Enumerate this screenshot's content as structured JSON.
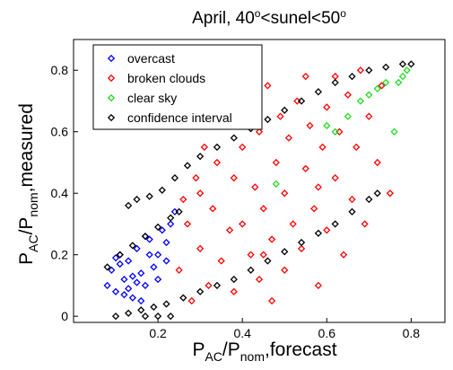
{
  "chart_data": {
    "type": "scatter",
    "title": [
      "April, 40",
      "o",
      "<sunel<50",
      "o"
    ],
    "x_label": [
      "P",
      "AC",
      "/P",
      "nom",
      ",forecast"
    ],
    "y_label": [
      "P",
      "AC",
      "/P",
      "nom",
      ",measured"
    ],
    "xlim": [
      0,
      0.88
    ],
    "ylim": [
      -0.02,
      0.9
    ],
    "xticks": [
      0.2,
      0.4,
      0.6,
      0.8
    ],
    "yticks": [
      0,
      0.2,
      0.4,
      0.6,
      0.8
    ],
    "legend": "upper left",
    "series": [
      {
        "name": "overcast",
        "color": "#0000ff",
        "x": [
          0.08,
          0.09,
          0.1,
          0.11,
          0.12,
          0.13,
          0.14,
          0.15,
          0.16,
          0.17,
          0.18,
          0.19,
          0.2,
          0.21,
          0.22,
          0.23,
          0.24,
          0.1,
          0.12,
          0.14,
          0.16,
          0.18,
          0.2,
          0.22,
          0.11,
          0.13,
          0.15,
          0.17
        ],
        "values": [
          0.1,
          0.15,
          0.08,
          0.2,
          0.12,
          0.18,
          0.06,
          0.22,
          0.14,
          0.1,
          0.25,
          0.16,
          0.2,
          0.28,
          0.18,
          0.3,
          0.34,
          0.19,
          0.07,
          0.13,
          0.05,
          0.2,
          0.12,
          0.24,
          0.17,
          0.09,
          0.11,
          0.26
        ]
      },
      {
        "name": "broken clouds",
        "color": "#ff0000",
        "x": [
          0.25,
          0.27,
          0.28,
          0.3,
          0.3,
          0.32,
          0.33,
          0.34,
          0.35,
          0.36,
          0.37,
          0.38,
          0.38,
          0.4,
          0.4,
          0.41,
          0.42,
          0.43,
          0.44,
          0.44,
          0.45,
          0.46,
          0.47,
          0.48,
          0.49,
          0.5,
          0.5,
          0.51,
          0.52,
          0.53,
          0.54,
          0.55,
          0.56,
          0.57,
          0.58,
          0.59,
          0.6,
          0.6,
          0.62,
          0.63,
          0.64,
          0.65,
          0.66,
          0.67,
          0.68,
          0.69,
          0.7,
          0.72,
          0.73,
          0.75,
          0.35,
          0.31,
          0.29,
          0.42,
          0.47,
          0.55,
          0.62,
          0.26,
          0.45,
          0.58
        ],
        "values": [
          0.15,
          0.3,
          0.05,
          0.4,
          0.22,
          0.1,
          0.35,
          0.5,
          0.18,
          0.62,
          0.28,
          0.45,
          0.08,
          0.55,
          0.3,
          0.7,
          0.2,
          0.42,
          0.6,
          0.12,
          0.35,
          0.75,
          0.25,
          0.5,
          0.65,
          0.15,
          0.4,
          0.58,
          0.3,
          0.7,
          0.22,
          0.48,
          0.62,
          0.35,
          0.1,
          0.55,
          0.28,
          0.68,
          0.45,
          0.6,
          0.2,
          0.72,
          0.38,
          0.55,
          0.8,
          0.3,
          0.65,
          0.5,
          0.75,
          0.4,
          0.72,
          0.55,
          0.45,
          0.8,
          0.05,
          0.78,
          0.78,
          0.38,
          0.2,
          0.42
        ]
      },
      {
        "name": "clear sky",
        "color": "#22dd22",
        "x": [
          0.48,
          0.6,
          0.62,
          0.65,
          0.68,
          0.7,
          0.72,
          0.74,
          0.76,
          0.78,
          0.77,
          0.79
        ],
        "values": [
          0.43,
          0.62,
          0.6,
          0.65,
          0.7,
          0.72,
          0.74,
          0.76,
          0.6,
          0.78,
          0.76,
          0.8
        ]
      },
      {
        "name": "confidence interval",
        "color": "#000000",
        "x": [
          0.13,
          0.15,
          0.18,
          0.21,
          0.24,
          0.27,
          0.3,
          0.34,
          0.38,
          0.42,
          0.46,
          0.5,
          0.54,
          0.58,
          0.62,
          0.66,
          0.7,
          0.74,
          0.78,
          0.8,
          0.08,
          0.11,
          0.14,
          0.17,
          0.2,
          0.23,
          0.25,
          0.1,
          0.13,
          0.16,
          0.19,
          0.22,
          0.26,
          0.3,
          0.34,
          0.38,
          0.42,
          0.46,
          0.5,
          0.54,
          0.58,
          0.62,
          0.66,
          0.7,
          0.72,
          0.17,
          0.2,
          0.23
        ],
        "values": [
          0.36,
          0.38,
          0.39,
          0.41,
          0.45,
          0.49,
          0.52,
          0.55,
          0.58,
          0.61,
          0.64,
          0.67,
          0.7,
          0.73,
          0.76,
          0.78,
          0.8,
          0.81,
          0.82,
          0.82,
          0.16,
          0.2,
          0.23,
          0.26,
          0.29,
          0.32,
          0.34,
          0.0,
          0.01,
          0.02,
          0.03,
          0.04,
          0.06,
          0.08,
          0.1,
          0.12,
          0.15,
          0.18,
          0.21,
          0.24,
          0.27,
          0.3,
          0.34,
          0.38,
          0.4,
          0.0,
          0.0,
          0.0
        ]
      }
    ]
  }
}
